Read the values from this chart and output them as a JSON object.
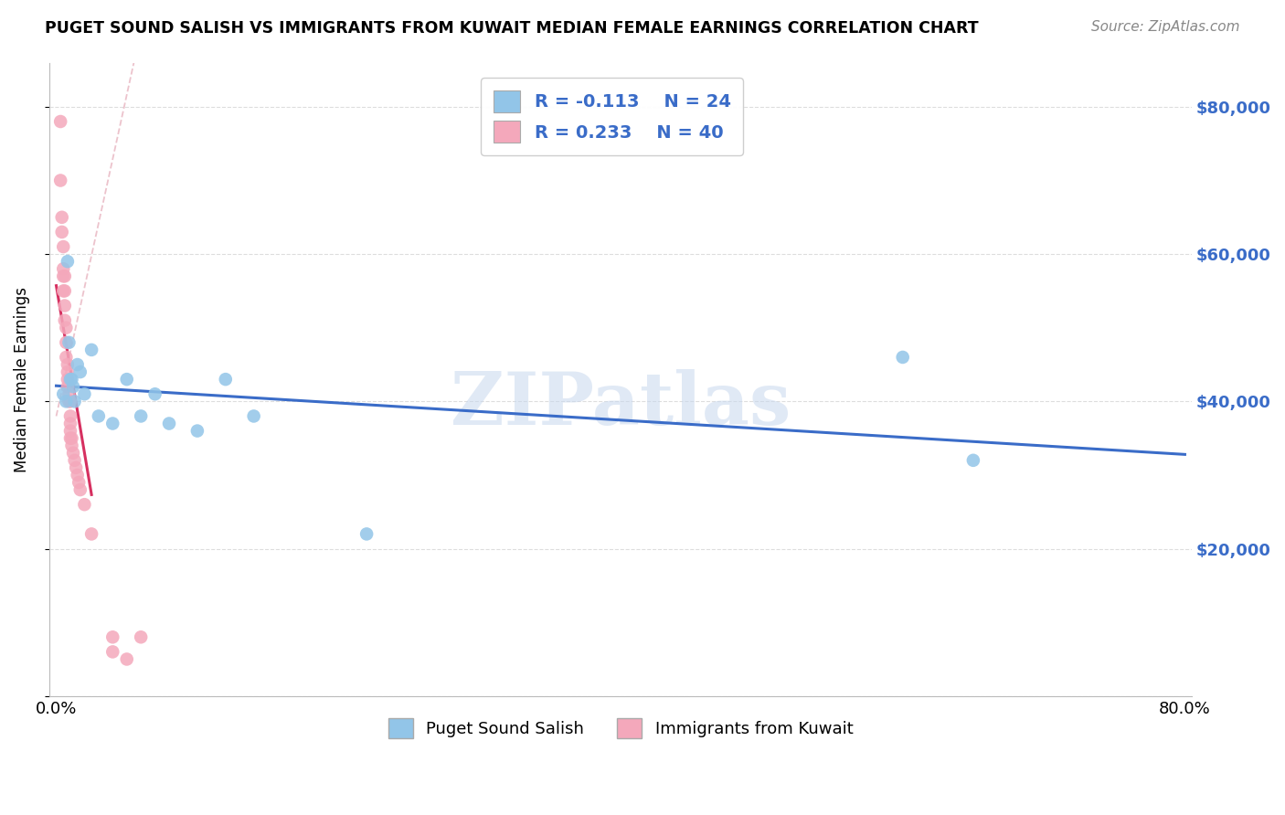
{
  "title": "PUGET SOUND SALISH VS IMMIGRANTS FROM KUWAIT MEDIAN FEMALE EARNINGS CORRELATION CHART",
  "source": "Source: ZipAtlas.com",
  "ylabel": "Median Female Earnings",
  "xlim": [
    0.0,
    0.8
  ],
  "ylim": [
    0,
    86000
  ],
  "yticks": [
    0,
    20000,
    40000,
    60000,
    80000
  ],
  "ytick_labels": [
    "",
    "$20,000",
    "$40,000",
    "$60,000",
    "$80,000"
  ],
  "xticks": [
    0.0,
    0.1,
    0.2,
    0.3,
    0.4,
    0.5,
    0.6,
    0.7,
    0.8
  ],
  "xtick_labels": [
    "0.0%",
    "",
    "",
    "",
    "",
    "",
    "",
    "",
    "80.0%"
  ],
  "blue_R": -0.113,
  "blue_N": 24,
  "pink_R": 0.233,
  "pink_N": 40,
  "blue_color": "#92C5E8",
  "pink_color": "#F4A8BB",
  "blue_line_color": "#3A6CC8",
  "pink_line_color": "#D63060",
  "pink_dash_color": "#E8B4C0",
  "watermark": "ZIPatlas",
  "blue_scatter_x": [
    0.005,
    0.007,
    0.008,
    0.009,
    0.01,
    0.011,
    0.012,
    0.013,
    0.015,
    0.017,
    0.02,
    0.025,
    0.03,
    0.04,
    0.05,
    0.06,
    0.07,
    0.08,
    0.1,
    0.12,
    0.14,
    0.22,
    0.6,
    0.65
  ],
  "blue_scatter_y": [
    41000,
    40000,
    59000,
    48000,
    43000,
    43000,
    42000,
    40000,
    45000,
    44000,
    41000,
    47000,
    38000,
    37000,
    43000,
    38000,
    41000,
    37000,
    36000,
    43000,
    38000,
    22000,
    46000,
    32000
  ],
  "pink_scatter_x": [
    0.003,
    0.003,
    0.004,
    0.004,
    0.005,
    0.005,
    0.005,
    0.005,
    0.006,
    0.006,
    0.006,
    0.006,
    0.007,
    0.007,
    0.007,
    0.008,
    0.008,
    0.008,
    0.008,
    0.009,
    0.009,
    0.01,
    0.01,
    0.01,
    0.01,
    0.01,
    0.011,
    0.011,
    0.012,
    0.013,
    0.014,
    0.015,
    0.016,
    0.017,
    0.02,
    0.025,
    0.04,
    0.04,
    0.05,
    0.06
  ],
  "pink_scatter_y": [
    78000,
    70000,
    65000,
    63000,
    61000,
    58000,
    57000,
    55000,
    57000,
    55000,
    53000,
    51000,
    50000,
    48000,
    46000,
    45000,
    44000,
    43000,
    42000,
    41000,
    40000,
    40000,
    38000,
    37000,
    36000,
    35000,
    35000,
    34000,
    33000,
    32000,
    31000,
    30000,
    29000,
    28000,
    26000,
    22000,
    8000,
    6000,
    5000,
    8000
  ],
  "background_color": "#FFFFFF",
  "grid_color": "#DDDDDD"
}
